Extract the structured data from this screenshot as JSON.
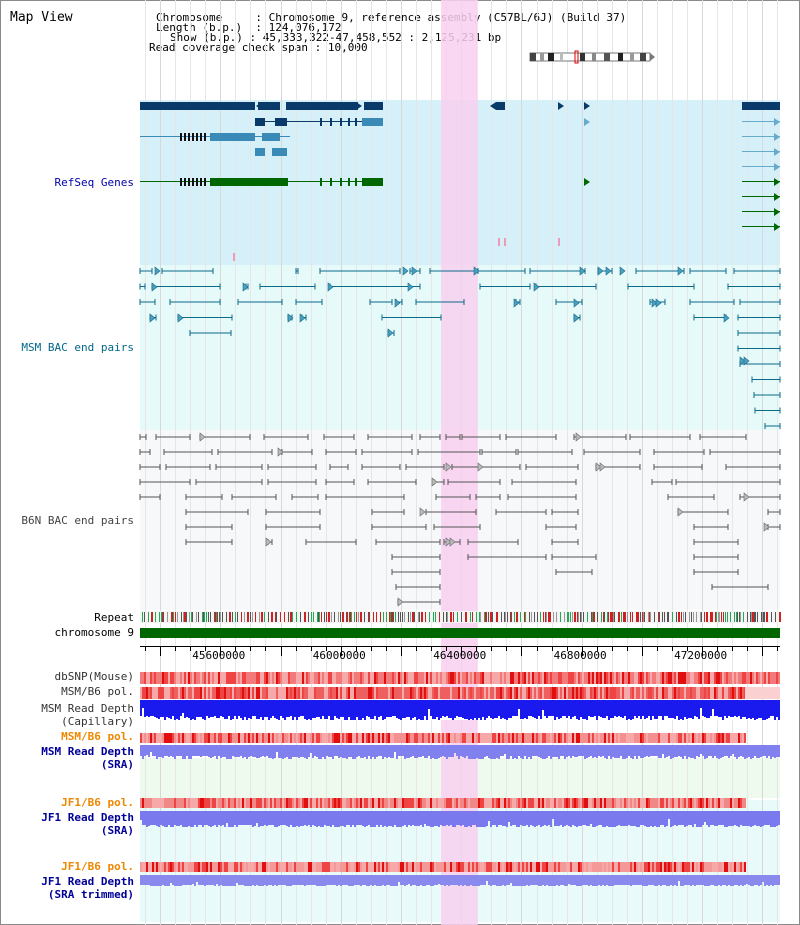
{
  "page_title": "Map View",
  "header": {
    "lines": [
      {
        "label": "Chromosome",
        "value": "Chromosome 9, reference assembly (C57BL/6J) (Build 37)"
      },
      {
        "label": "Length (b.p.)",
        "value": "124,076,172"
      },
      {
        "label": "Show (b.p.)",
        "value": "45,333,322-47,458,552 : 2,125,231 bp"
      },
      {
        "label": "Read coverage check span",
        "value": "10,000"
      }
    ]
  },
  "region": {
    "start": 45333322,
    "end": 47458552,
    "length_bp": 2125231
  },
  "axis": {
    "ticks": [
      {
        "value": 45600000,
        "label": "45600000"
      },
      {
        "value": 46000000,
        "label": "46000000"
      },
      {
        "value": 46400000,
        "label": "46400000"
      },
      {
        "value": 46800000,
        "label": "46800000"
      },
      {
        "value": 47200000,
        "label": "47200000"
      }
    ]
  },
  "highlight_region": {
    "start": 46333000,
    "end": 46455000
  },
  "tracks": {
    "refseq": {
      "label": "RefSeq Genes",
      "color": "#0000aa"
    },
    "msm_bac": {
      "label": "MSM BAC end pairs",
      "color": "#006688"
    },
    "b6n_bac": {
      "label": "B6N BAC end pairs",
      "color": "#444444"
    },
    "repeat": {
      "label": "Repeat"
    },
    "chromosome": {
      "label": "chromosome 9"
    },
    "dbsnp": {
      "label": "dbSNP(Mouse)"
    },
    "msm_b6_pol": {
      "label": "MSM/B6 pol."
    },
    "msm_depth_cap": {
      "label1": "MSM Read Depth",
      "label2": "(Capillary)"
    },
    "msm_b6_pol2": {
      "label": "MSM/B6 pol."
    },
    "msm_depth_sra": {
      "label1": "MSM Read Depth",
      "label2": "(SRA)"
    },
    "jf1_b6_pol": {
      "label": "JF1/B6 pol."
    },
    "jf1_depth_sra": {
      "label1": "JF1 Read Depth",
      "label2": "(SRA)"
    },
    "jf1_b6_pol2": {
      "label": "JF1/B6 pol."
    },
    "jf1_depth_trim": {
      "label1": "JF1 Read Depth",
      "label2": "(SRA trimmed)"
    }
  },
  "colors": {
    "refseq_bg": "#d6f0fa",
    "msm_bg": "#e6fafa",
    "b6n_bg": "#f6f8fa",
    "highlight": "#f8d0f0",
    "gene_dark": "#0a3a6a",
    "gene_mid": "#3a8ab8",
    "gene_light": "#66aacc",
    "gene_green": "#006600",
    "chrom_bar": "#006600",
    "label_gray": "#333333",
    "label_orange": "#ee8800",
    "label_blue": "#000099"
  }
}
